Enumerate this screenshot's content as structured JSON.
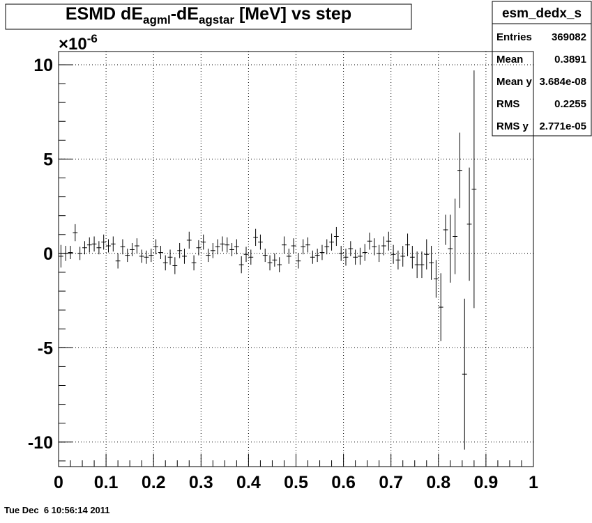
{
  "chart_data": {
    "type": "errorbar",
    "title_parts": [
      {
        "text": "ESMD dE",
        "sub": false
      },
      {
        "text": "agml",
        "sub": true
      },
      {
        "text": "-dE",
        "sub": false
      },
      {
        "text": "agstar",
        "sub": true
      },
      {
        "text": " [MeV] vs step",
        "sub": false
      }
    ],
    "y_multiplier": {
      "base": "×10",
      "exponent": "-6"
    },
    "color": "#000000",
    "grid": true,
    "xlim": [
      0,
      1
    ],
    "xticks": [
      0,
      0.1,
      0.2,
      0.3,
      0.4,
      0.5,
      0.6,
      0.7,
      0.8,
      0.9,
      1
    ],
    "ylim": [
      -11.3,
      10.7
    ],
    "yticks": [
      -10,
      -5,
      0,
      5,
      10
    ],
    "x": [
      0.005,
      0.015,
      0.025,
      0.035,
      0.045,
      0.055,
      0.065,
      0.075,
      0.085,
      0.095,
      0.105,
      0.115,
      0.125,
      0.135,
      0.145,
      0.155,
      0.165,
      0.175,
      0.185,
      0.195,
      0.205,
      0.215,
      0.225,
      0.235,
      0.245,
      0.255,
      0.265,
      0.275,
      0.285,
      0.295,
      0.305,
      0.315,
      0.325,
      0.335,
      0.345,
      0.355,
      0.365,
      0.375,
      0.385,
      0.395,
      0.405,
      0.415,
      0.425,
      0.435,
      0.445,
      0.455,
      0.465,
      0.475,
      0.485,
      0.495,
      0.505,
      0.515,
      0.525,
      0.535,
      0.545,
      0.555,
      0.565,
      0.575,
      0.585,
      0.595,
      0.605,
      0.615,
      0.625,
      0.635,
      0.645,
      0.655,
      0.665,
      0.675,
      0.685,
      0.695,
      0.705,
      0.715,
      0.725,
      0.735,
      0.745,
      0.755,
      0.765,
      0.775,
      0.785,
      0.795,
      0.805,
      0.815,
      0.825,
      0.835,
      0.845,
      0.855,
      0.865,
      0.875
    ],
    "values": [
      -0.15,
      0,
      0.05,
      1.1,
      0,
      0.3,
      0.45,
      0.5,
      0.3,
      0.6,
      0.4,
      0.5,
      -0.4,
      0.35,
      -0.1,
      0.2,
      0.4,
      -0.15,
      -0.2,
      -0.1,
      0.35,
      0.05,
      -0.5,
      -0.2,
      -0.65,
      0.15,
      -0.15,
      0.7,
      -0.5,
      0.3,
      0.6,
      -0.1,
      0.15,
      0.35,
      0.5,
      0.45,
      0.2,
      0.35,
      -0.6,
      -0.05,
      -0.2,
      0.85,
      0.6,
      -0.1,
      -0.5,
      -0.35,
      -0.6,
      0.45,
      -0.15,
      0.4,
      -0.4,
      0.35,
      0.45,
      -0.2,
      -0.1,
      0.05,
      0.35,
      0.6,
      0.9,
      0,
      -0.2,
      0.25,
      -0.2,
      -0.15,
      0.05,
      0.65,
      0.35,
      0,
      0.4,
      0.65,
      -0.05,
      -0.35,
      -0.15,
      0.45,
      -0.2,
      -0.6,
      -0.6,
      -0.05,
      -0.5,
      -1.35,
      -2.85,
      1.25,
      0.25,
      0.9,
      4.4,
      -6.4,
      1.55,
      3.4
    ],
    "errors": [
      0.6,
      0.4,
      0.35,
      0.45,
      0.35,
      0.35,
      0.4,
      0.4,
      0.35,
      0.4,
      0.35,
      0.4,
      0.4,
      0.4,
      0.35,
      0.35,
      0.4,
      0.35,
      0.35,
      0.35,
      0.4,
      0.35,
      0.4,
      0.4,
      0.45,
      0.4,
      0.4,
      0.45,
      0.4,
      0.4,
      0.4,
      0.35,
      0.4,
      0.4,
      0.4,
      0.4,
      0.35,
      0.4,
      0.45,
      0.4,
      0.4,
      0.45,
      0.4,
      0.35,
      0.4,
      0.35,
      0.4,
      0.45,
      0.4,
      0.4,
      0.4,
      0.4,
      0.4,
      0.35,
      0.35,
      0.4,
      0.4,
      0.45,
      0.5,
      0.4,
      0.45,
      0.4,
      0.4,
      0.45,
      0.45,
      0.45,
      0.45,
      0.45,
      0.5,
      0.5,
      0.5,
      0.5,
      0.55,
      0.6,
      0.6,
      0.7,
      0.7,
      0.8,
      0.9,
      1.0,
      1.8,
      0.8,
      1.8,
      2.0,
      2.0,
      4.0,
      3.0,
      6.3
    ],
    "stats": {
      "title": "esm_dedx_s",
      "rows": [
        {
          "label": "Entries",
          "value": "369082"
        },
        {
          "label": "Mean",
          "value": "0.3891"
        },
        {
          "label": "Mean y",
          "value": "3.684e-08"
        },
        {
          "label": "RMS",
          "value": "0.2255"
        },
        {
          "label": "RMS y",
          "value": "2.771e-05"
        }
      ]
    },
    "timestamp": "Tue Dec  6 10:56:14 2011"
  }
}
